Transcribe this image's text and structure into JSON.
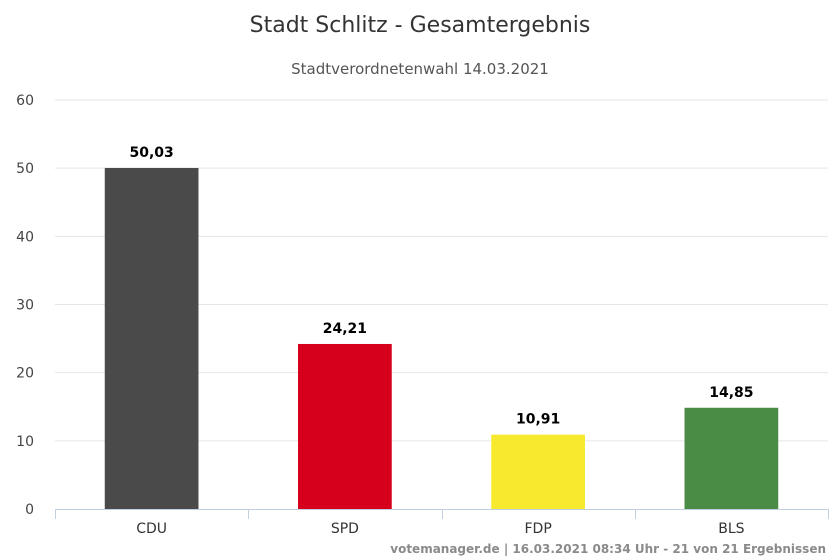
{
  "chart_data": {
    "type": "bar",
    "title": "Stadt Schlitz - Gesamtergebnis",
    "subtitle": "Stadtverordnetenwahl 14.03.2021",
    "categories": [
      "CDU",
      "SPD",
      "FDP",
      "BLS"
    ],
    "values": [
      50.03,
      24.21,
      10.91,
      14.85
    ],
    "value_labels": [
      "50,03",
      "24,21",
      "10,91",
      "14,85"
    ],
    "colors": [
      "#4a4a4a",
      "#d6001c",
      "#f7e92e",
      "#4a8c46"
    ],
    "ylim": [
      0,
      60
    ],
    "yticks": [
      0,
      10,
      20,
      30,
      40,
      50,
      60
    ],
    "grid": true,
    "xlabel": "",
    "ylabel": ""
  },
  "credit": "votemanager.de | 16.03.2021 08:34 Uhr - 21 von 21 Ergebnissen"
}
